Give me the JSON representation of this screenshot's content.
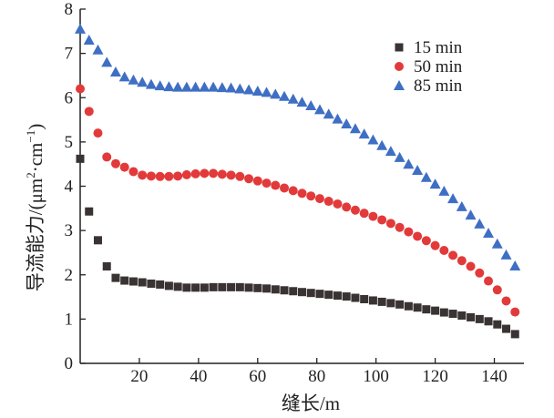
{
  "chart_data": {
    "type": "scatter",
    "xlabel": "缝长/m",
    "ylabel_main": "导流能力/(μm",
    "ylabel_sup1": "2",
    "ylabel_mid": "·cm",
    "ylabel_sup2": "−1",
    "ylabel_end": ")",
    "xlim": [
      0,
      150
    ],
    "ylim": [
      0,
      8
    ],
    "xticks": [
      20,
      40,
      60,
      80,
      100,
      120,
      140
    ],
    "yticks": [
      0,
      1,
      2,
      3,
      4,
      5,
      6,
      7,
      8
    ],
    "grid": false,
    "legend_position": "top-right",
    "series": [
      {
        "name": "15 min",
        "marker": "square",
        "color": "#3a3333",
        "x": [
          0,
          3,
          6,
          9,
          12,
          15,
          18,
          21,
          24,
          27,
          30,
          33,
          36,
          39,
          42,
          45,
          48,
          51,
          54,
          57,
          60,
          63,
          66,
          69,
          72,
          75,
          78,
          81,
          84,
          87,
          90,
          93,
          96,
          99,
          102,
          105,
          108,
          111,
          114,
          117,
          120,
          123,
          126,
          129,
          132,
          135,
          138,
          141,
          144,
          147
        ],
        "y": [
          4.62,
          3.43,
          2.78,
          2.19,
          1.93,
          1.87,
          1.85,
          1.83,
          1.8,
          1.78,
          1.75,
          1.73,
          1.71,
          1.71,
          1.71,
          1.72,
          1.72,
          1.72,
          1.72,
          1.71,
          1.7,
          1.69,
          1.67,
          1.65,
          1.63,
          1.61,
          1.59,
          1.57,
          1.55,
          1.53,
          1.51,
          1.48,
          1.45,
          1.42,
          1.39,
          1.36,
          1.33,
          1.29,
          1.26,
          1.22,
          1.19,
          1.15,
          1.12,
          1.08,
          1.04,
          1.0,
          0.95,
          0.88,
          0.78,
          0.66
        ]
      },
      {
        "name": "50 min",
        "marker": "circle",
        "color": "#e23a3a",
        "x": [
          0,
          3,
          6,
          9,
          12,
          15,
          18,
          21,
          24,
          27,
          30,
          33,
          36,
          39,
          42,
          45,
          48,
          51,
          54,
          57,
          60,
          63,
          66,
          69,
          72,
          75,
          78,
          81,
          84,
          87,
          90,
          93,
          96,
          99,
          102,
          105,
          108,
          111,
          114,
          117,
          120,
          123,
          126,
          129,
          132,
          135,
          138,
          141,
          144,
          147
        ],
        "y": [
          6.2,
          5.69,
          5.2,
          4.66,
          4.51,
          4.43,
          4.33,
          4.25,
          4.23,
          4.22,
          4.22,
          4.23,
          4.26,
          4.28,
          4.29,
          4.29,
          4.27,
          4.25,
          4.22,
          4.17,
          4.12,
          4.07,
          4.02,
          3.96,
          3.9,
          3.84,
          3.78,
          3.72,
          3.66,
          3.6,
          3.53,
          3.46,
          3.39,
          3.32,
          3.24,
          3.16,
          3.07,
          2.97,
          2.87,
          2.77,
          2.66,
          2.55,
          2.44,
          2.32,
          2.19,
          2.04,
          1.86,
          1.66,
          1.41,
          1.16
        ]
      },
      {
        "name": "85 min",
        "marker": "triangle",
        "color": "#3f6fc4",
        "x": [
          0,
          3,
          6,
          9,
          12,
          15,
          18,
          21,
          24,
          27,
          30,
          33,
          36,
          39,
          42,
          45,
          48,
          51,
          54,
          57,
          60,
          63,
          66,
          69,
          72,
          75,
          78,
          81,
          84,
          87,
          90,
          93,
          96,
          99,
          102,
          105,
          108,
          111,
          114,
          117,
          120,
          123,
          126,
          129,
          132,
          135,
          138,
          141,
          144,
          147
        ],
        "y": [
          7.55,
          7.3,
          7.08,
          6.8,
          6.58,
          6.47,
          6.4,
          6.35,
          6.3,
          6.27,
          6.25,
          6.24,
          6.24,
          6.24,
          6.24,
          6.24,
          6.23,
          6.22,
          6.2,
          6.18,
          6.15,
          6.12,
          6.08,
          6.03,
          5.97,
          5.9,
          5.82,
          5.73,
          5.63,
          5.52,
          5.41,
          5.3,
          5.18,
          5.05,
          4.92,
          4.79,
          4.65,
          4.5,
          4.36,
          4.2,
          4.05,
          3.89,
          3.72,
          3.54,
          3.35,
          3.15,
          2.94,
          2.7,
          2.45,
          2.2
        ]
      }
    ]
  }
}
